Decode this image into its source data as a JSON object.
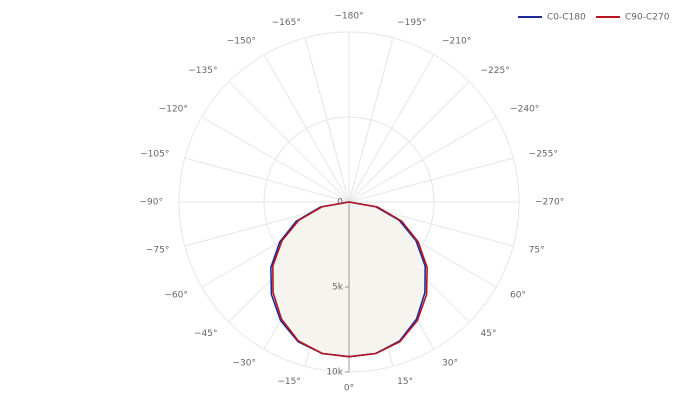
{
  "chart_data": {
    "type": "polar",
    "theta": [
      -90,
      -80,
      -70,
      -60,
      -50,
      -40,
      -30,
      -20,
      -10,
      0,
      10,
      20,
      30,
      40,
      50,
      60,
      70,
      80,
      90
    ],
    "series": [
      {
        "name": "C0-C180",
        "color": "#1c2a9c",
        "values": [
          0,
          1700,
          3300,
          4700,
          6000,
          7100,
          8050,
          8750,
          9050,
          9100,
          9050,
          8700,
          7950,
          6950,
          5850,
          4550,
          3150,
          1600,
          0
        ]
      },
      {
        "name": "C90-C270",
        "color": "#b5161f",
        "values": [
          0,
          1600,
          3150,
          4550,
          5850,
          6950,
          7950,
          8700,
          9050,
          9100,
          9050,
          8750,
          8050,
          7100,
          6000,
          4700,
          3300,
          1700,
          0
        ]
      }
    ],
    "rlim": [
      0,
      10000
    ],
    "rticks": [
      0,
      {
        "value": 5000,
        "label": "5k"
      },
      {
        "value": 10000,
        "label": "10k"
      }
    ],
    "thetaticks": [
      {
        "value": 0,
        "label": "0°"
      },
      {
        "value": 15,
        "label": "15°"
      },
      {
        "value": 30,
        "label": "30°"
      },
      {
        "value": 45,
        "label": "45°"
      },
      {
        "value": 60,
        "label": "60°"
      },
      {
        "value": 75,
        "label": "75°"
      },
      {
        "value": -270,
        "label": "−270°"
      },
      {
        "value": -255,
        "label": "−255°"
      },
      {
        "value": -240,
        "label": "−240°"
      },
      {
        "value": -225,
        "label": "−225°"
      },
      {
        "value": -210,
        "label": "−210°"
      },
      {
        "value": -195,
        "label": "−195°"
      },
      {
        "value": -180,
        "label": "−180°"
      },
      {
        "value": -165,
        "label": "−165°"
      },
      {
        "value": -150,
        "label": "−150°"
      },
      {
        "value": -135,
        "label": "−135°"
      },
      {
        "value": -120,
        "label": "−120°"
      },
      {
        "value": -105,
        "label": "−105°"
      },
      {
        "value": -90,
        "label": "−90°"
      },
      {
        "value": -75,
        "label": "−75°"
      },
      {
        "value": -60,
        "label": "−60°"
      },
      {
        "value": -45,
        "label": "−45°"
      },
      {
        "value": -30,
        "label": "−30°"
      },
      {
        "value": -15,
        "label": "−15°"
      }
    ],
    "grid": true,
    "legend": "top-right",
    "fill": "#f6f4ee"
  }
}
